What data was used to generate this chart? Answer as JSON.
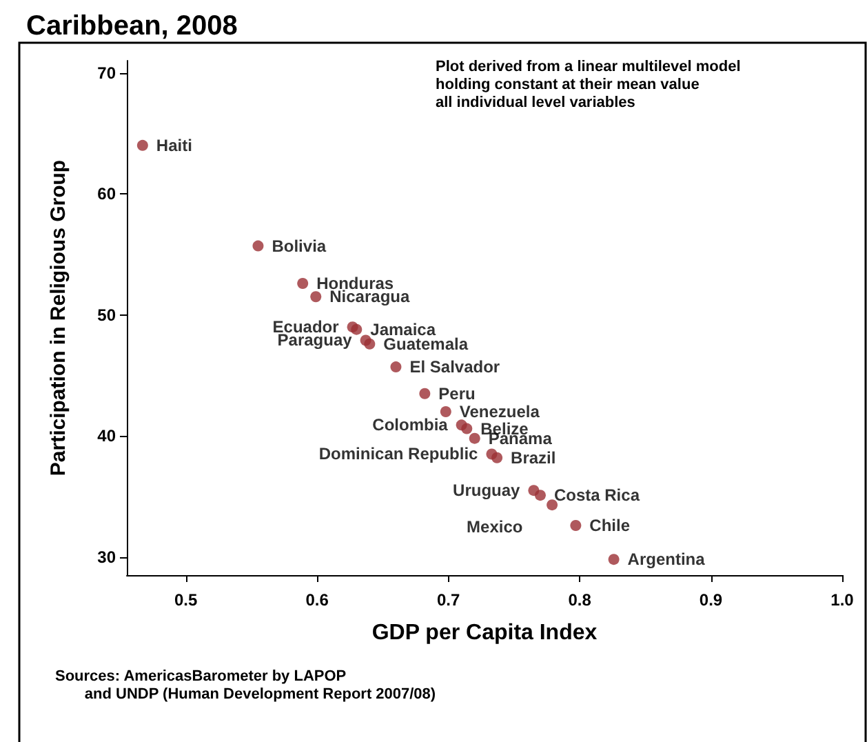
{
  "chart_data": {
    "type": "scatter",
    "title": "Caribbean, 2008",
    "xlabel": "GDP per Capita Index",
    "ylabel": "Participation in Religious Group",
    "x": [
      0.467,
      0.555,
      0.589,
      0.599,
      0.627,
      0.63,
      0.637,
      0.64,
      0.66,
      0.682,
      0.698,
      0.71,
      0.714,
      0.72,
      0.733,
      0.737,
      0.765,
      0.77,
      0.779,
      0.797,
      0.826
    ],
    "series": [
      {
        "color": "#9b2f35",
        "values": [
          64.0,
          55.7,
          52.6,
          51.5,
          49.0,
          48.8,
          47.9,
          47.6,
          45.7,
          43.5,
          42.0,
          40.9,
          40.6,
          39.8,
          38.5,
          38.2,
          35.5,
          35.1,
          34.3,
          32.6,
          29.8
        ]
      }
    ],
    "marker": "circle",
    "grid": false,
    "xlim": [
      0.455,
      1.0
    ],
    "xticks": [
      0.5,
      0.6,
      0.7,
      0.8,
      0.9,
      {
        "value": 1.0,
        "label": "1.0"
      }
    ],
    "ylim": [
      28.5,
      71
    ],
    "yticks": [
      30,
      40,
      50,
      60,
      70
    ],
    "annotations": [
      {
        "text": "Haiti",
        "x": 0.467,
        "y": 64.0
      },
      {
        "text": "Bolivia",
        "x": 0.555,
        "y": 55.7
      },
      {
        "text": "Honduras",
        "x": 0.589,
        "y": 52.6
      },
      {
        "text": "Nicaragua",
        "x": 0.599,
        "y": 51.5
      },
      {
        "text": "Ecuador",
        "x": 0.627,
        "y": 49.0
      },
      {
        "text": "Jamaica",
        "x": 0.63,
        "y": 48.8
      },
      {
        "text": "Paraguay",
        "x": 0.637,
        "y": 47.9
      },
      {
        "text": "Guatemala",
        "x": 0.64,
        "y": 47.6
      },
      {
        "text": "El Salvador",
        "x": 0.66,
        "y": 45.7
      },
      {
        "text": "Peru",
        "x": 0.682,
        "y": 43.5
      },
      {
        "text": "Venezuela",
        "x": 0.698,
        "y": 42.0
      },
      {
        "text": "Colombia",
        "x": 0.71,
        "y": 40.9
      },
      {
        "text": "Belize",
        "x": 0.714,
        "y": 40.6
      },
      {
        "text": "Panama",
        "x": 0.72,
        "y": 39.8
      },
      {
        "text": "Dominican Republic",
        "x": 0.733,
        "y": 38.5
      },
      {
        "text": "Brazil",
        "x": 0.737,
        "y": 38.2
      },
      {
        "text": "Uruguay",
        "x": 0.765,
        "y": 35.5
      },
      {
        "text": "Costa Rica",
        "x": 0.77,
        "y": 35.1
      },
      {
        "text": "Mexico",
        "x": 0.779,
        "y": 34.3
      },
      {
        "text": "Chile",
        "x": 0.797,
        "y": 32.6
      },
      {
        "text": "Argentina",
        "x": 0.826,
        "y": 29.8
      },
      "Plot derived from a linear multilevel model\nholding constant at their mean value\nall individual level variables",
      "Sources: AmericasBarometer by LAPOP\n       and UNDP (Human Development Report 2007/08)"
    ]
  }
}
